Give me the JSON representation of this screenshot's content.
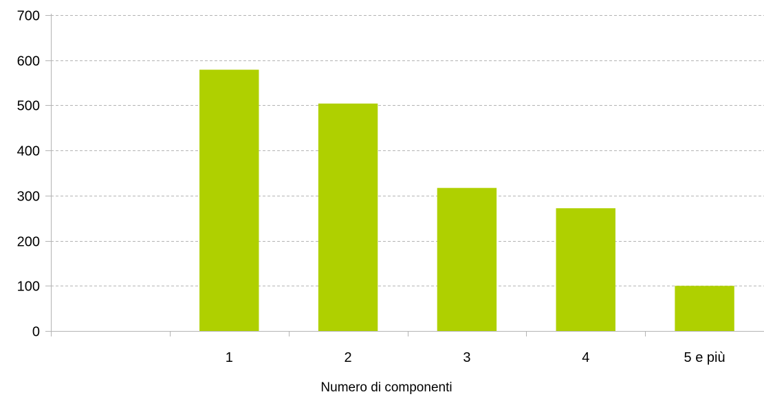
{
  "chart_data": {
    "type": "bar",
    "categories": [
      "",
      "1",
      "2",
      "3",
      "4",
      "5 e più"
    ],
    "values": [
      null,
      579,
      504,
      317,
      272,
      100
    ],
    "xlabel": "Numero di componenti",
    "ylabel": "",
    "ylim": [
      0,
      700
    ],
    "yticks": [
      "0",
      "100",
      "200",
      "300",
      "400",
      "500",
      "600",
      "700"
    ],
    "grid": true,
    "bar_color": "#afd000",
    "grid_color": "#b3b3b3",
    "axis_color": "#b3b3b3"
  }
}
